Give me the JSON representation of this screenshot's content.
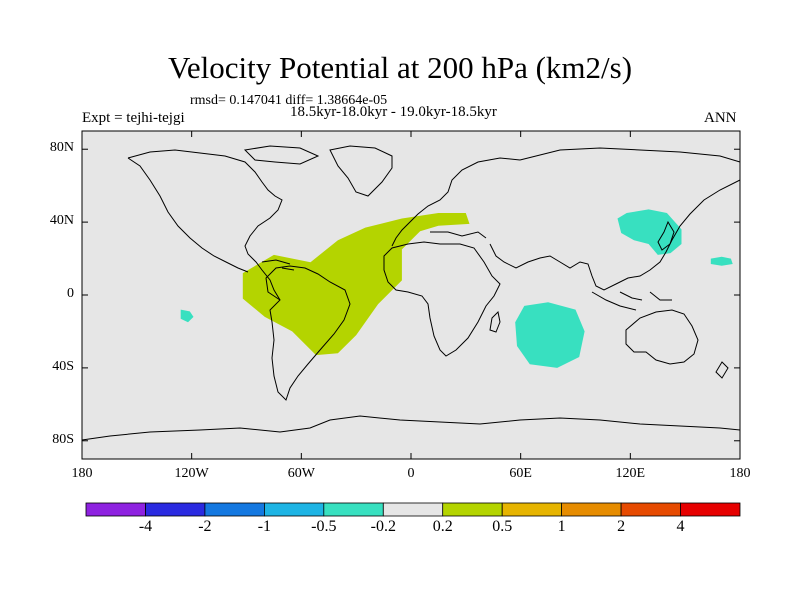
{
  "title": "Velocity Potential at 200 hPa (km2/s)",
  "stats": "rmsd= 0.147041 diff= 1.38664e-05",
  "experiment": "Expt = tejhi-tejgi",
  "subtitle": "18.5kyr-18.0kyr - 19.0kyr-18.5kyr",
  "season": "ANN",
  "colors": {
    "ocean_land_background": "#e6e6e6",
    "coastline": "#000000",
    "positive_fill": "#b4d400",
    "negative_fill": "#38e0c0"
  },
  "map": {
    "lon_range": [
      -180,
      180
    ],
    "lat_range": [
      -90,
      90
    ],
    "y_ticks": [
      {
        "lat": 80,
        "label": "80N"
      },
      {
        "lat": 40,
        "label": "40N"
      },
      {
        "lat": 0,
        "label": "0"
      },
      {
        "lat": -40,
        "label": "40S"
      },
      {
        "lat": -80,
        "label": "80S"
      }
    ],
    "x_ticks": [
      {
        "lon": -180,
        "label": "180"
      },
      {
        "lon": -120,
        "label": "120W"
      },
      {
        "lon": -60,
        "label": "60W"
      },
      {
        "lon": 0,
        "label": "0"
      },
      {
        "lon": 60,
        "label": "60E"
      },
      {
        "lon": 120,
        "label": "120E"
      },
      {
        "lon": 180,
        "label": "180"
      }
    ],
    "anomaly_regions": [
      {
        "name": "atlantic-positive-anomaly",
        "sign": "positive",
        "range": [
          0.2,
          0.5
        ],
        "points": [
          [
            -92,
            12
          ],
          [
            -75,
            22
          ],
          [
            -55,
            18
          ],
          [
            -40,
            30
          ],
          [
            -25,
            37
          ],
          [
            -5,
            42
          ],
          [
            15,
            45
          ],
          [
            30,
            45
          ],
          [
            32,
            39
          ],
          [
            15,
            38
          ],
          [
            5,
            35
          ],
          [
            -5,
            25
          ],
          [
            -5,
            8
          ],
          [
            -18,
            -5
          ],
          [
            -30,
            -22
          ],
          [
            -40,
            -32
          ],
          [
            -52,
            -33
          ],
          [
            -65,
            -20
          ],
          [
            -80,
            -12
          ],
          [
            -92,
            -2
          ]
        ]
      },
      {
        "name": "pacific-small-negative-anomaly",
        "sign": "negative",
        "range": [
          -0.5,
          -0.2
        ],
        "points": [
          [
            -126,
            -8
          ],
          [
            -121,
            -9
          ],
          [
            -119,
            -12
          ],
          [
            -122,
            -15
          ],
          [
            -126,
            -13
          ]
        ]
      },
      {
        "name": "east-asia-negative-anomaly",
        "sign": "negative",
        "range": [
          -0.5,
          -0.2
        ],
        "points": [
          [
            113,
            42
          ],
          [
            118,
            45
          ],
          [
            130,
            47
          ],
          [
            140,
            45
          ],
          [
            148,
            36
          ],
          [
            148,
            28
          ],
          [
            142,
            23
          ],
          [
            135,
            22
          ],
          [
            130,
            28
          ],
          [
            122,
            30
          ],
          [
            115,
            34
          ]
        ]
      },
      {
        "name": "north-pacific-negative-anomaly",
        "sign": "negative",
        "range": [
          -0.5,
          -0.2
        ],
        "points": [
          [
            164,
            20
          ],
          [
            170,
            21
          ],
          [
            175,
            20
          ],
          [
            176,
            17
          ],
          [
            170,
            16
          ],
          [
            164,
            17
          ]
        ]
      },
      {
        "name": "indian-ocean-negative-anomaly",
        "sign": "negative",
        "range": [
          -0.5,
          -0.2
        ],
        "points": [
          [
            62,
            -6
          ],
          [
            75,
            -4
          ],
          [
            90,
            -8
          ],
          [
            95,
            -20
          ],
          [
            92,
            -34
          ],
          [
            80,
            -40
          ],
          [
            65,
            -38
          ],
          [
            58,
            -28
          ],
          [
            57,
            -15
          ]
        ]
      }
    ]
  },
  "colorbar": {
    "colors": [
      "#8e22e0",
      "#2a2ae0",
      "#1478e0",
      "#1eb4e4",
      "#38e0c0",
      "#e6e6e6",
      "#b4d400",
      "#e6b400",
      "#e68c00",
      "#e64a00",
      "#e60000"
    ],
    "labels": [
      "-4",
      "-2",
      "-1",
      "-0.5",
      "-0.2",
      "0.2",
      "0.5",
      "1",
      "2",
      "4"
    ]
  }
}
